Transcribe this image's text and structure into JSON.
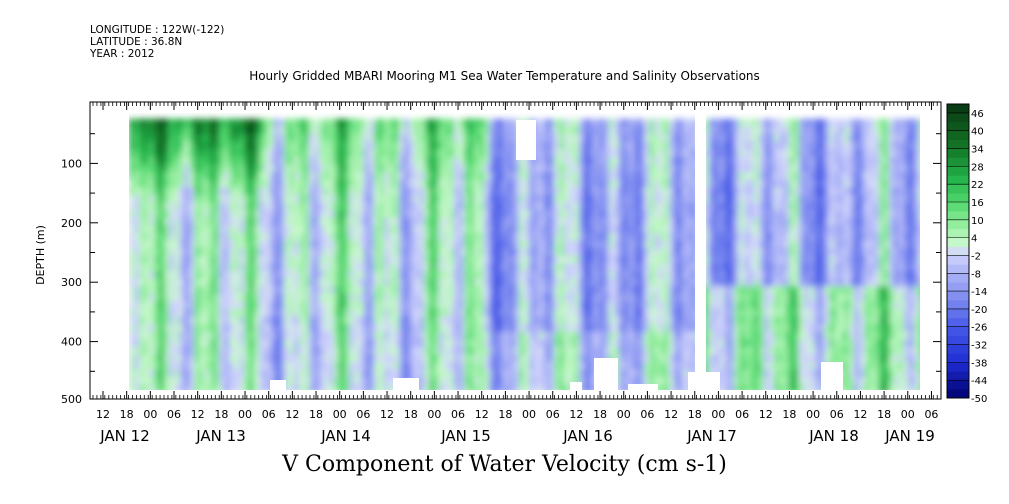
{
  "header": {
    "longitude": "LONGITUDE : 122W(-122)",
    "latitude": "LATITUDE : 36.8N",
    "year": "YEAR : 2012"
  },
  "chart_data": {
    "type": "heatmap",
    "title": "Hourly Gridded MBARI Mooring M1 Sea Water Temperature and Salinity Observations",
    "xlabel": "V Component of Water Velocity (cm s-1)",
    "ylabel": "DEPTH (m)",
    "ylim": [
      500,
      0
    ],
    "y_ticks": [
      100,
      200,
      300,
      400,
      500
    ],
    "x_hour_ticks": [
      "12",
      "18",
      "00",
      "06",
      "12",
      "18",
      "00",
      "06",
      "12",
      "18",
      "00",
      "06",
      "12",
      "18",
      "00",
      "06",
      "12",
      "18",
      "00",
      "06",
      "12",
      "18",
      "00",
      "06",
      "12",
      "18",
      "00",
      "06",
      "12",
      "18",
      "00",
      "06",
      "12",
      "18",
      "00",
      "06"
    ],
    "x_day_labels": [
      "JAN 12",
      "JAN 13",
      "JAN 14",
      "JAN 15",
      "JAN 16",
      "JAN 17",
      "JAN 18",
      "JAN 19"
    ],
    "colorbar": {
      "levels": [
        "46",
        "40",
        "34",
        "28",
        "22",
        "16",
        "10",
        "4",
        "-2",
        "-8",
        "-14",
        "-20",
        "-26",
        "-32",
        "-38",
        "-44",
        "-50"
      ],
      "min": -50,
      "max": 49,
      "step": 3,
      "colors": {
        "dark_green": "#0b3d12",
        "green": "#23b04a",
        "light_green": "#9df0a6",
        "light_blue": "#c8cdfa",
        "periwinkle": "#8c98f0",
        "blue": "#2a3fd8",
        "navy": "#000070"
      }
    },
    "data_summary": "Near-surface (25-150 m) values mostly positive 20-46 cm/s on Jan 12-13; alternating vertical bands of -20 to +16 cm/s from Jan 13 to Jan 16; predominantly negative -8 to -26 cm/s from Jan 16 to Jan 19; data gaps (white) near 30-100 m around Jan 15 00 and a vertical gap column near Jan 17 09."
  }
}
